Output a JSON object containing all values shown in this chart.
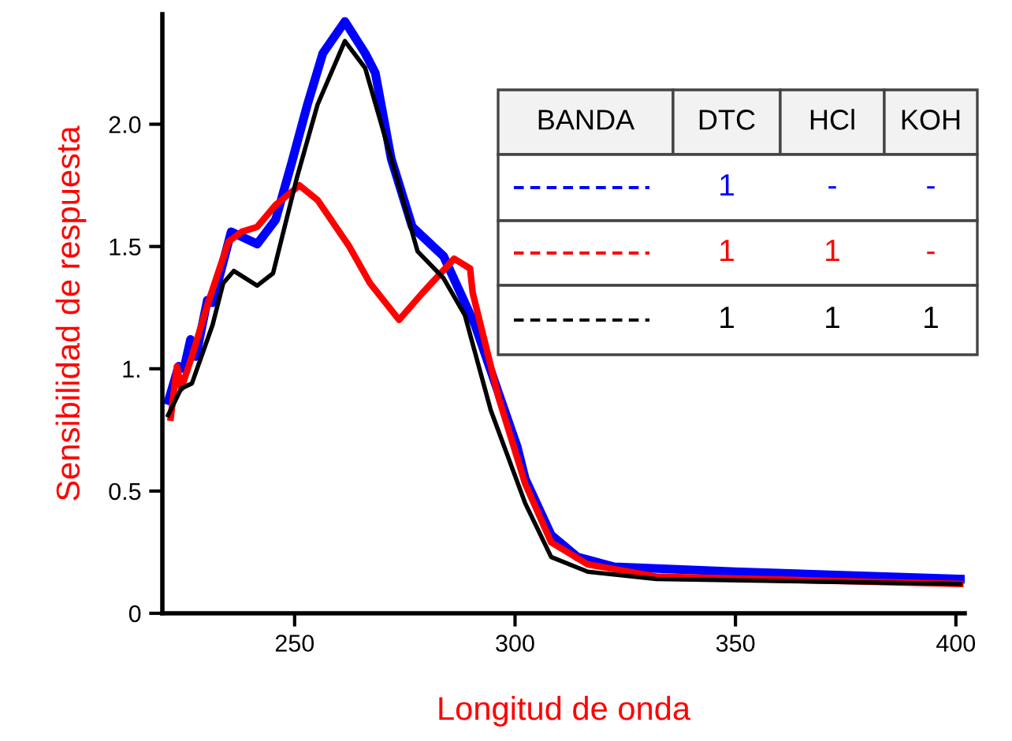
{
  "chart_data": {
    "type": "line",
    "xlabel": "Longitud de onda",
    "ylabel": "Sensibilidad de respuesta",
    "xlim": [
      220,
      402
    ],
    "xticks": [
      250,
      300,
      350,
      400
    ],
    "ylim": [
      0,
      2.45
    ],
    "yticks": [
      0,
      0.5,
      {
        "value": 1,
        "label": "1."
      },
      1.5,
      {
        "value": 2,
        "label": "2.0"
      }
    ],
    "grid": false,
    "marker": "none",
    "line_style": "solid",
    "annotations": [
      "BANDA",
      "DTC",
      "HCl",
      "KOH",
      "1",
      "-",
      "-",
      "1",
      "1",
      "-",
      "1",
      "1",
      "1"
    ],
    "series": [
      {
        "color": "#0000ff",
        "x": [
          221.4,
          223.7,
          224.9,
          226.4,
          227.6,
          230.2,
          231.4,
          235.6,
          241.5,
          245.7,
          249.3,
          252.9,
          256.4,
          261.4,
          266.0,
          268.3,
          271.9,
          276.7,
          283.8,
          290.9,
          300.5,
          302.3,
          308.2,
          314.2,
          322.5,
          349.9,
          401.1
        ],
        "values": [
          0.87,
          1.01,
          1.0,
          1.12,
          1.05,
          1.28,
          1.27,
          1.56,
          1.51,
          1.61,
          1.84,
          2.08,
          2.29,
          2.42,
          2.29,
          2.21,
          1.86,
          1.58,
          1.46,
          1.18,
          0.68,
          0.55,
          0.32,
          0.23,
          0.19,
          0.17,
          0.14
        ]
      },
      {
        "color": "#ff0000",
        "x": [
          221.9,
          223.3,
          224.3,
          226.7,
          230.2,
          235.0,
          238.0,
          241.5,
          245.7,
          251.1,
          255.2,
          262.4,
          267.1,
          273.7,
          279.0,
          286.2,
          289.8,
          290.4,
          296.3,
          302.3,
          308.2,
          316.5,
          332.0,
          401.0
        ],
        "values": [
          0.8,
          1.01,
          0.92,
          1.05,
          1.26,
          1.52,
          1.56,
          1.58,
          1.67,
          1.75,
          1.69,
          1.5,
          1.35,
          1.2,
          1.31,
          1.45,
          1.41,
          1.31,
          0.88,
          0.53,
          0.29,
          0.2,
          0.15,
          0.12
        ]
      },
      {
        "color": "#000000",
        "x": [
          221.3,
          224.3,
          226.7,
          231.4,
          233.8,
          236.2,
          241.5,
          245.1,
          250.5,
          255.2,
          261.4,
          266.0,
          271.9,
          277.9,
          283.8,
          288.6,
          294.5,
          302.3,
          308.2,
          316.5,
          332.0,
          401.0
        ],
        "values": [
          0.81,
          0.92,
          0.94,
          1.18,
          1.35,
          1.4,
          1.34,
          1.39,
          1.78,
          2.08,
          2.34,
          2.23,
          1.86,
          1.48,
          1.37,
          1.22,
          0.83,
          0.45,
          0.23,
          0.17,
          0.14,
          0.12
        ]
      }
    ]
  }
}
